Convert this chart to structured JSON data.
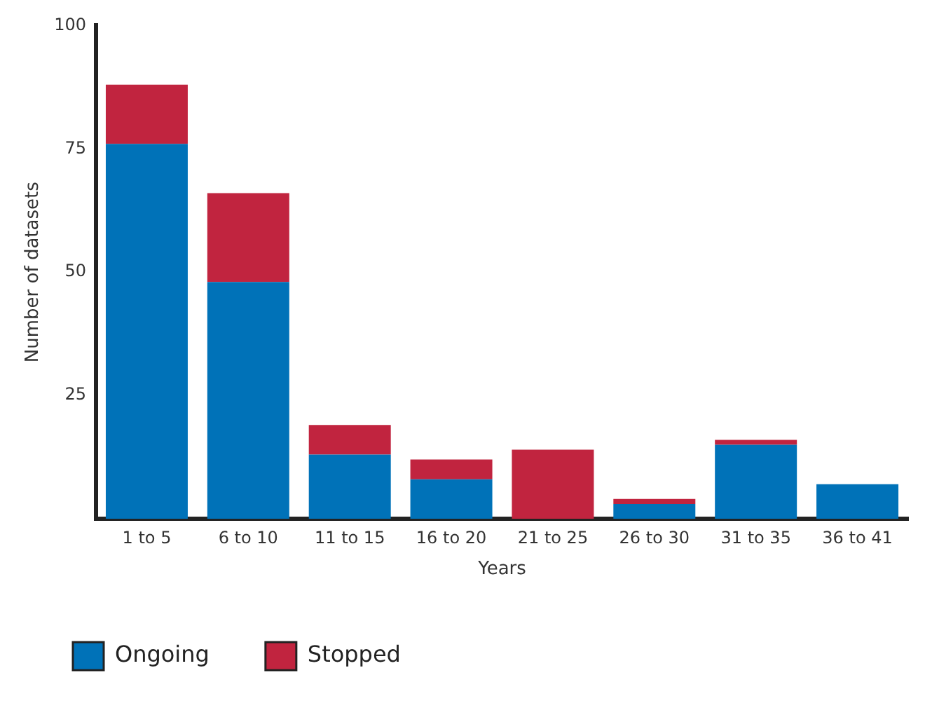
{
  "chart_data": {
    "type": "bar",
    "stacked": true,
    "xlabel": "Years",
    "ylabel": "Number of datasets",
    "categories": [
      "1 to 5",
      "6 to 10",
      "11 to 15",
      "16 to 20",
      "21 to 25",
      "26 to 30",
      "31 to 35",
      "36 to 41"
    ],
    "series": [
      {
        "name": "Ongoing",
        "color": "#0072b8",
        "values": [
          76,
          48,
          13,
          8,
          0,
          3,
          15,
          7
        ]
      },
      {
        "name": "Stopped",
        "color": "#c1243f",
        "values": [
          12,
          18,
          6,
          4,
          14,
          1,
          1,
          0
        ]
      }
    ],
    "ylim": [
      0,
      100
    ],
    "yticks": [
      {
        "value": 0,
        "label": null
      },
      25,
      50,
      75,
      100
    ],
    "grid": false,
    "legend": "bottom left"
  }
}
